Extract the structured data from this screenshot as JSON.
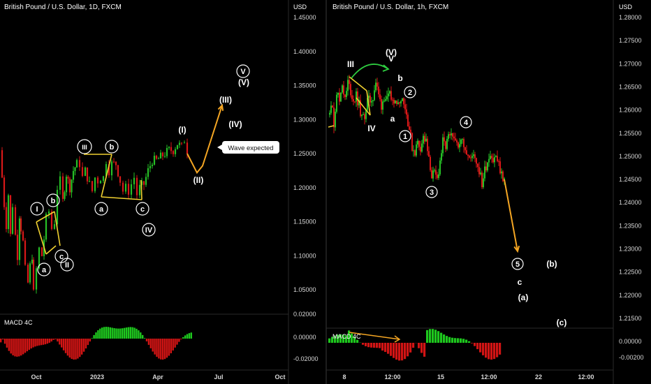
{
  "panels": [
    {
      "title": "British Pound / U.S. Dollar, 1D, FXCM",
      "currency": "USD",
      "indicator_label": "MACD 4C"
    },
    {
      "title": "British Pound / U.S. Dollar, 1h, FXCM",
      "currency": "USD",
      "indicator_label": "MACD 4C"
    }
  ],
  "callout": "Wave expected",
  "colors": {
    "background": "#000000",
    "up": "#26c026",
    "down": "#d81818",
    "wave_lines": "#f0d030",
    "projection": "#f5a623",
    "curve": "#2ecc40",
    "macd_up": "#1ec81e",
    "macd_down": "#d21414"
  },
  "chart_data": [
    {
      "type": "candlestick",
      "title": "British Pound / U.S. Dollar, 1D, FXCM",
      "ylabel": "USD",
      "ylim": [
        1.02,
        1.47
      ],
      "y_ticks": [
        "1.45000",
        "1.40000",
        "1.35000",
        "1.30000",
        "1.25000",
        "1.20000",
        "1.15000",
        "1.10000",
        "1.05000"
      ],
      "x_ticks": [
        "Oct",
        "2023",
        "Apr",
        "Jul",
        "Oct"
      ],
      "price_path": [
        [
          0,
          1.255
        ],
        [
          3,
          1.215
        ],
        [
          6,
          1.175
        ],
        [
          9,
          1.145
        ],
        [
          12,
          1.19
        ],
        [
          15,
          1.13
        ],
        [
          18,
          1.175
        ],
        [
          22,
          1.13
        ],
        [
          25,
          1.1
        ],
        [
          28,
          1.16
        ],
        [
          30,
          1.14
        ],
        [
          33,
          1.12
        ],
        [
          36,
          1.08
        ],
        [
          40,
          1.06
        ],
        [
          43,
          1.085
        ],
        [
          46,
          1.1
        ],
        [
          48,
          1.045
        ],
        [
          52,
          1.08
        ],
        [
          56,
          1.11
        ],
        [
          60,
          1.1
        ],
        [
          63,
          1.125
        ],
        [
          66,
          1.155
        ],
        [
          70,
          1.165
        ],
        [
          74,
          1.14
        ],
        [
          78,
          1.15
        ],
        [
          82,
          1.2
        ],
        [
          86,
          1.21
        ],
        [
          90,
          1.18
        ],
        [
          95,
          1.22
        ],
        [
          100,
          1.2
        ],
        [
          105,
          1.225
        ],
        [
          110,
          1.235
        ],
        [
          114,
          1.235
        ],
        [
          118,
          1.215
        ],
        [
          122,
          1.225
        ],
        [
          128,
          1.205
        ],
        [
          132,
          1.195
        ],
        [
          136,
          1.215
        ],
        [
          140,
          1.21
        ],
        [
          144,
          1.215
        ],
        [
          148,
          1.215
        ],
        [
          152,
          1.24
        ],
        [
          156,
          1.225
        ],
        [
          160,
          1.235
        ],
        [
          166,
          1.235
        ],
        [
          172,
          1.21
        ],
        [
          176,
          1.195
        ],
        [
          180,
          1.2
        ],
        [
          184,
          1.195
        ],
        [
          188,
          1.205
        ],
        [
          192,
          1.215
        ],
        [
          196,
          1.19
        ],
        [
          200,
          1.2
        ],
        [
          206,
          1.205
        ],
        [
          212,
          1.225
        ],
        [
          218,
          1.24
        ],
        [
          224,
          1.24
        ],
        [
          230,
          1.245
        ],
        [
          236,
          1.25
        ],
        [
          242,
          1.255
        ],
        [
          248,
          1.255
        ],
        [
          254,
          1.265
        ],
        [
          260,
          1.26
        ],
        [
          264,
          1.27
        ],
        [
          268,
          1.255
        ]
      ],
      "wave_labels": [
        {
          "text": "I",
          "circled": true,
          "price": 1.168
        },
        {
          "text": "b",
          "circled": true,
          "price": 1.178
        },
        {
          "text": "a",
          "circled": true,
          "price": 1.051
        },
        {
          "text": "c",
          "circled": true,
          "price": 1.086
        },
        {
          "text": "II",
          "circled": true,
          "price": 1.075
        },
        {
          "text": "III",
          "circled": true,
          "price": 1.263
        },
        {
          "text": "b",
          "circled": true,
          "price": 1.263
        },
        {
          "text": "a",
          "circled": true,
          "price": 1.168
        },
        {
          "text": "c",
          "circled": true,
          "price": 1.166
        },
        {
          "text": "IV",
          "circled": true,
          "price": 1.133
        },
        {
          "text": "(I)",
          "circled": false,
          "price": 1.287
        },
        {
          "text": "(II)",
          "circled": false,
          "price": 1.212
        },
        {
          "text": "(III)",
          "circled": false,
          "price": 1.327
        },
        {
          "text": "(IV)",
          "circled": false,
          "price": 1.293
        },
        {
          "text": "V",
          "circled": true,
          "price": 1.369
        },
        {
          "text": "(V)",
          "circled": false,
          "price": 1.351
        }
      ],
      "projection_path": [
        [
          268,
          1.25
        ],
        [
          282,
          1.222
        ],
        [
          290,
          1.232
        ],
        [
          318,
          1.321
        ]
      ],
      "macd": {
        "label": "MACD 4C",
        "ylim": [
          -0.025,
          0.02
        ],
        "y_ticks": [
          "0.02000",
          "0.00000",
          "-0.02000"
        ]
      }
    },
    {
      "type": "candlestick",
      "title": "British Pound / U.S. Dollar, 1h, FXCM",
      "ylabel": "USD",
      "ylim": [
        1.212,
        1.282
      ],
      "y_ticks": [
        "1.28000",
        "1.27500",
        "1.27000",
        "1.26500",
        "1.26000",
        "1.25500",
        "1.25000",
        "1.24500",
        "1.24000",
        "1.23500",
        "1.23000",
        "1.22500",
        "1.22000",
        "1.21500"
      ],
      "x_ticks": [
        "8",
        "12:00",
        "15",
        "12:00",
        "22",
        "12:00"
      ],
      "price_path": [
        [
          470,
          1.259
        ],
        [
          474,
          1.262
        ],
        [
          478,
          1.257
        ],
        [
          482,
          1.264
        ],
        [
          486,
          1.262
        ],
        [
          490,
          1.266
        ],
        [
          494,
          1.262
        ],
        [
          498,
          1.266
        ],
        [
          502,
          1.264
        ],
        [
          506,
          1.262
        ],
        [
          510,
          1.263
        ],
        [
          514,
          1.261
        ],
        [
          518,
          1.258
        ],
        [
          522,
          1.259
        ],
        [
          526,
          1.262
        ],
        [
          530,
          1.262
        ],
        [
          534,
          1.263
        ],
        [
          538,
          1.266
        ],
        [
          542,
          1.263
        ],
        [
          546,
          1.261
        ],
        [
          550,
          1.263
        ],
        [
          554,
          1.262
        ],
        [
          558,
          1.263
        ],
        [
          562,
          1.262
        ],
        [
          566,
          1.263
        ],
        [
          570,
          1.261
        ],
        [
          574,
          1.263
        ],
        [
          578,
          1.262
        ],
        [
          582,
          1.259
        ],
        [
          586,
          1.256
        ],
        [
          590,
          1.252
        ],
        [
          594,
          1.251
        ],
        [
          598,
          1.253
        ],
        [
          602,
          1.252
        ],
        [
          606,
          1.254
        ],
        [
          610,
          1.253
        ],
        [
          614,
          1.249
        ],
        [
          618,
          1.246
        ],
        [
          622,
          1.246
        ],
        [
          626,
          1.245
        ],
        [
          630,
          1.249
        ],
        [
          634,
          1.253
        ],
        [
          638,
          1.252
        ],
        [
          642,
          1.254
        ],
        [
          646,
          1.254
        ],
        [
          650,
          1.253
        ],
        [
          654,
          1.254
        ],
        [
          658,
          1.252
        ],
        [
          662,
          1.254
        ],
        [
          666,
          1.252
        ],
        [
          670,
          1.25
        ],
        [
          674,
          1.249
        ],
        [
          678,
          1.251
        ],
        [
          682,
          1.249
        ],
        [
          686,
          1.247
        ],
        [
          690,
          1.244
        ],
        [
          694,
          1.247
        ],
        [
          698,
          1.249
        ],
        [
          702,
          1.251
        ],
        [
          706,
          1.249
        ],
        [
          710,
          1.25
        ],
        [
          714,
          1.248
        ],
        [
          718,
          1.246
        ],
        [
          722,
          1.245
        ]
      ],
      "wave_labels": [
        {
          "text": "III",
          "circled": false,
          "price": 1.2675
        },
        {
          "text": "(V)",
          "circled": false,
          "price": 1.2705
        },
        {
          "text": "V",
          "circled": false,
          "price": 1.269
        },
        {
          "text": "b",
          "circled": false,
          "price": 1.2655
        },
        {
          "text": "2",
          "circled": true,
          "price": 1.263
        },
        {
          "text": "a",
          "circled": false,
          "price": 1.258
        },
        {
          "text": "IV",
          "circled": false,
          "price": 1.256
        },
        {
          "text": "1",
          "circled": true,
          "price": 1.254
        },
        {
          "text": "4",
          "circled": true,
          "price": 1.256
        },
        {
          "text": "3",
          "circled": true,
          "price": 1.243
        },
        {
          "text": "5",
          "circled": true,
          "price": 1.2265
        },
        {
          "text": "(b)",
          "circled": false,
          "price": 1.2265
        },
        {
          "text": "c",
          "circled": false,
          "price": 1.2225
        },
        {
          "text": "(a)",
          "circled": false,
          "price": 1.219
        },
        {
          "text": "(c)",
          "circled": false,
          "price": 1.2145
        }
      ],
      "projection_path": [
        [
          722,
          1.245
        ],
        [
          741,
          1.2295
        ]
      ],
      "macd": {
        "label": "MACD 4C",
        "ylim": [
          -0.0035,
          0.0025
        ],
        "y_ticks": [
          "0.00000",
          "-0.00200"
        ]
      }
    }
  ]
}
